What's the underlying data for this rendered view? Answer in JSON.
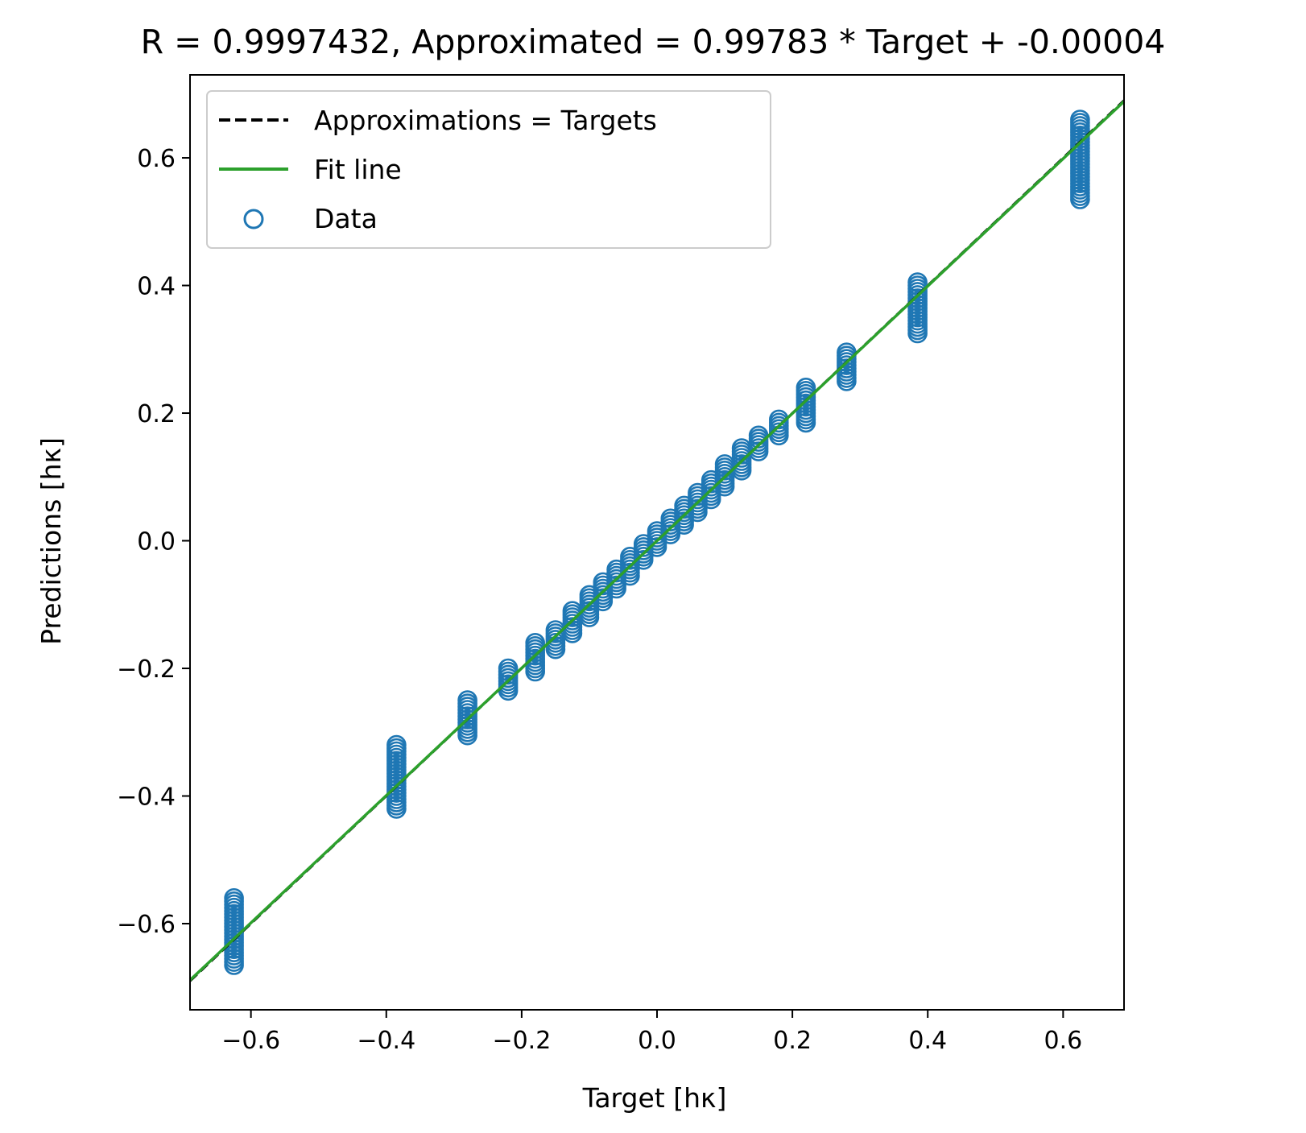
{
  "chart_data": {
    "type": "scatter",
    "title": "R = 0.9997432, Approximated = 0.99783 * Target + -0.00004",
    "xlabel": "Target [hκ]",
    "ylabel": "Predictions [hκ]",
    "xlim": [
      -0.69,
      0.69
    ],
    "ylim": [
      -0.735,
      0.73
    ],
    "xticks": [
      -0.6,
      -0.4,
      -0.2,
      0.0,
      0.2,
      0.4,
      0.6
    ],
    "xtick_labels": [
      "−0.6",
      "−0.4",
      "−0.2",
      "0.0",
      "0.2",
      "0.4",
      "0.6"
    ],
    "yticks": [
      -0.6,
      -0.4,
      -0.2,
      0.0,
      0.2,
      0.4,
      0.6
    ],
    "ytick_labels": [
      "−0.6",
      "−0.4",
      "−0.2",
      "0.0",
      "0.2",
      "0.4",
      "0.6"
    ],
    "grid": false,
    "legend_position": "top-left",
    "legend": [
      {
        "label": "Approximations = Targets",
        "style": "dashed-line",
        "color": "#000000"
      },
      {
        "label": "Fit line",
        "style": "solid-line",
        "color": "#2ca02c"
      },
      {
        "label": "Data",
        "style": "open-circle",
        "color": "#1f77b4"
      }
    ],
    "lines": [
      {
        "name": "Approximations = Targets",
        "slope": 1.0,
        "intercept": 0.0,
        "color": "#000000",
        "dash": true
      },
      {
        "name": "Fit line",
        "slope": 0.99783,
        "intercept": -4e-05,
        "color": "#2ca02c",
        "dash": false
      }
    ],
    "scatter_clusters": [
      {
        "x": -0.625,
        "y_min": -0.665,
        "y_max": -0.56
      },
      {
        "x": -0.385,
        "y_min": -0.42,
        "y_max": -0.32
      },
      {
        "x": -0.28,
        "y_min": -0.305,
        "y_max": -0.25
      },
      {
        "x": -0.22,
        "y_min": -0.235,
        "y_max": -0.2
      },
      {
        "x": -0.18,
        "y_min": -0.205,
        "y_max": -0.16
      },
      {
        "x": -0.15,
        "y_min": -0.17,
        "y_max": -0.14
      },
      {
        "x": -0.125,
        "y_min": -0.145,
        "y_max": -0.11
      },
      {
        "x": -0.1,
        "y_min": -0.12,
        "y_max": -0.085
      },
      {
        "x": -0.08,
        "y_min": -0.095,
        "y_max": -0.065
      },
      {
        "x": -0.06,
        "y_min": -0.075,
        "y_max": -0.045
      },
      {
        "x": -0.04,
        "y_min": -0.055,
        "y_max": -0.025
      },
      {
        "x": -0.02,
        "y_min": -0.03,
        "y_max": -0.005
      },
      {
        "x": 0.0,
        "y_min": -0.01,
        "y_max": 0.015
      },
      {
        "x": 0.02,
        "y_min": 0.01,
        "y_max": 0.035
      },
      {
        "x": 0.04,
        "y_min": 0.025,
        "y_max": 0.055
      },
      {
        "x": 0.06,
        "y_min": 0.045,
        "y_max": 0.075
      },
      {
        "x": 0.08,
        "y_min": 0.065,
        "y_max": 0.095
      },
      {
        "x": 0.1,
        "y_min": 0.085,
        "y_max": 0.12
      },
      {
        "x": 0.125,
        "y_min": 0.11,
        "y_max": 0.145
      },
      {
        "x": 0.15,
        "y_min": 0.14,
        "y_max": 0.165
      },
      {
        "x": 0.18,
        "y_min": 0.165,
        "y_max": 0.19
      },
      {
        "x": 0.22,
        "y_min": 0.185,
        "y_max": 0.24
      },
      {
        "x": 0.28,
        "y_min": 0.25,
        "y_max": 0.295
      },
      {
        "x": 0.385,
        "y_min": 0.325,
        "y_max": 0.405
      },
      {
        "x": 0.625,
        "y_min": 0.535,
        "y_max": 0.66
      }
    ]
  }
}
